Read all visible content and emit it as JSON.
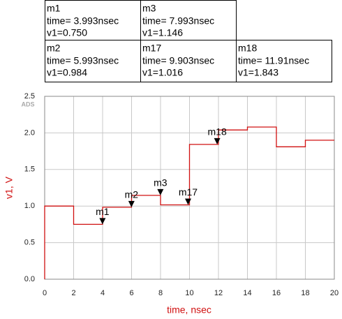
{
  "chart_data": {
    "type": "line",
    "brand": "ADS",
    "x_label": "time, nsec",
    "y_label": "v1, V",
    "grid": true,
    "color": "#d01010",
    "xlim": [
      0,
      20
    ],
    "ylim": [
      0,
      2.5
    ],
    "xticks": [
      0,
      2,
      4,
      6,
      8,
      10,
      12,
      14,
      16,
      18,
      20
    ],
    "yticks": [
      {
        "value": 0,
        "label": "0.0"
      },
      {
        "value": 0.5,
        "label": "0.5"
      },
      {
        "value": 1,
        "label": "1.0"
      },
      {
        "value": 1.5,
        "label": "1.5"
      },
      {
        "value": 2,
        "label": "2.0"
      },
      {
        "value": 2.5,
        "label": "2.5"
      }
    ],
    "x": [
      0,
      0,
      2,
      2,
      4,
      4,
      6,
      6,
      8,
      8,
      10,
      10,
      12,
      12,
      14,
      14,
      16,
      16,
      18,
      18,
      20
    ],
    "values": [
      0,
      1,
      1,
      0.75,
      0.75,
      0.984,
      0.984,
      1.146,
      1.146,
      1.016,
      1.016,
      1.843,
      1.843,
      2.04,
      2.04,
      2.08,
      2.08,
      1.81,
      1.81,
      1.9,
      1.9
    ],
    "markers": [
      {
        "name": "m1",
        "time": 3.993,
        "v1": 0.75,
        "time_label": "time= 3.993nsec",
        "v1_label": "v1=0.750"
      },
      {
        "name": "m2",
        "time": 5.993,
        "v1": 0.984,
        "time_label": "time= 5.993nsec",
        "v1_label": "v1=0.984"
      },
      {
        "name": "m3",
        "time": 7.993,
        "v1": 1.146,
        "time_label": "time= 7.993nsec",
        "v1_label": "v1=1.146"
      },
      {
        "name": "m17",
        "time": 9.903,
        "v1": 1.016,
        "time_label": "time= 9.903nsec",
        "v1_label": "v1=1.016"
      },
      {
        "name": "m18",
        "time": 11.91,
        "v1": 1.843,
        "time_label": "time= 11.91nsec",
        "v1_label": "v1=1.843"
      }
    ]
  }
}
